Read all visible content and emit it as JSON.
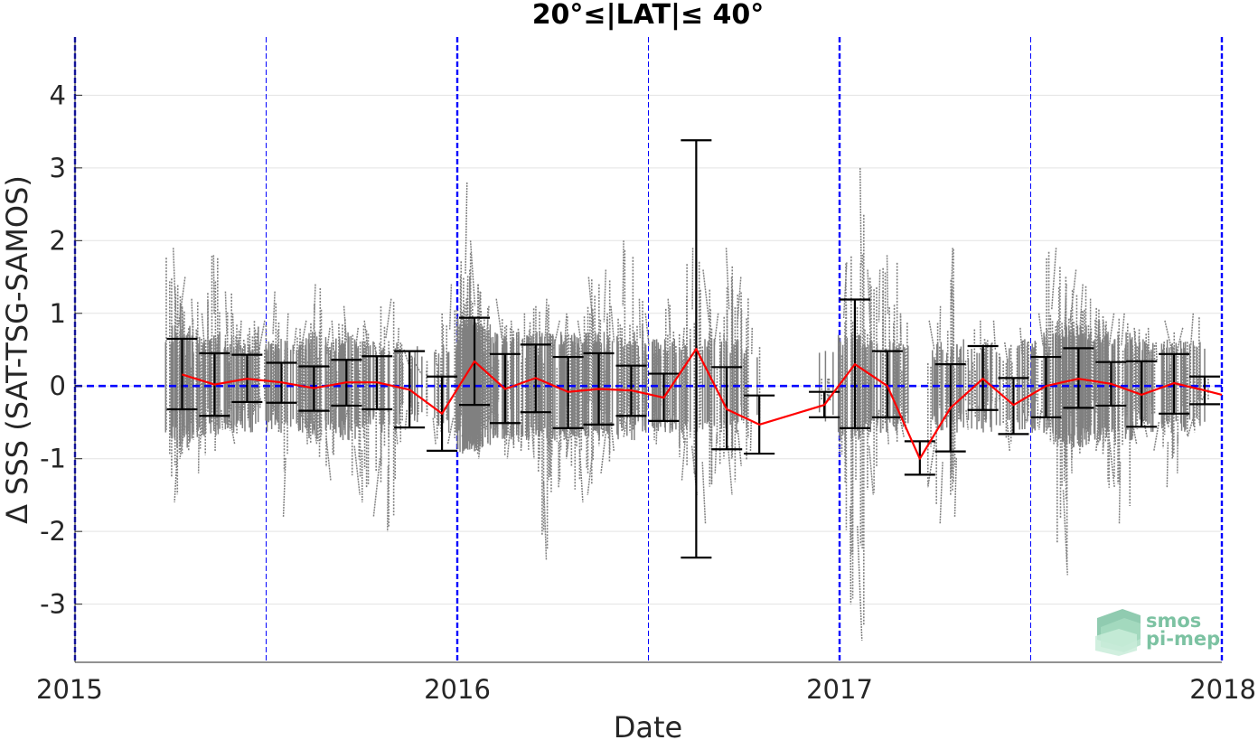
{
  "chart_data": {
    "type": "scatter",
    "title": "20°≤|LAT|≤ 40°",
    "xlabel": "Date",
    "ylabel": "Δ SSS (SAT-TSG-SAMOS)",
    "xlim": [
      2015.0,
      2018.0
    ],
    "ylim": [
      -3.8,
      4.8
    ],
    "x_ticks": [
      2015,
      2016,
      2017,
      2018
    ],
    "x_tick_labels": [
      "2015",
      "2016",
      "2017",
      "2018"
    ],
    "y_ticks": [
      4,
      3,
      2,
      1,
      0,
      -1,
      -2,
      -3
    ],
    "y_tick_labels": [
      "4",
      "3",
      "2",
      "1",
      "0",
      "-1",
      "-2",
      "-3"
    ],
    "grid": true,
    "zero_line_color": "#0000ff",
    "year_line_color": "#0000ff",
    "scatter_color": "#808080",
    "mean_line_color": "#ff0000",
    "errorbar_color": "#000000",
    "mean_series": {
      "x": [
        2015.28,
        2015.365,
        2015.45,
        2015.54,
        2015.625,
        2015.71,
        2015.79,
        2015.875,
        2015.96,
        2016.045,
        2016.125,
        2016.205,
        2016.29,
        2016.37,
        2016.455,
        2016.54,
        2016.625,
        2016.705,
        2016.79,
        2016.96,
        2017.04,
        2017.125,
        2017.21,
        2017.29,
        2017.375,
        2017.455,
        2017.54,
        2017.625,
        2017.71,
        2017.79,
        2017.875,
        2017.955,
        2018.0
      ],
      "mean": [
        0.16,
        0.02,
        0.1,
        0.05,
        -0.03,
        0.05,
        0.05,
        -0.05,
        -0.38,
        0.34,
        -0.04,
        0.11,
        -0.08,
        -0.04,
        -0.06,
        -0.16,
        0.51,
        -0.32,
        -0.53,
        -0.26,
        0.3,
        0.0,
        -1.0,
        -0.3,
        0.1,
        -0.26,
        0.0,
        0.1,
        0.03,
        -0.12,
        0.04,
        -0.06,
        -0.12
      ],
      "upper": [
        0.65,
        0.45,
        0.43,
        0.32,
        0.27,
        0.36,
        0.41,
        0.48,
        0.13,
        0.94,
        0.44,
        0.57,
        0.4,
        0.45,
        0.28,
        0.17,
        3.38,
        0.26,
        -0.13,
        -0.08,
        1.19,
        0.48,
        -0.76,
        0.3,
        0.55,
        0.11,
        0.4,
        0.52,
        0.33,
        0.34,
        0.44,
        0.13,
        null
      ],
      "lower": [
        -0.32,
        -0.41,
        -0.22,
        -0.23,
        -0.34,
        -0.27,
        -0.32,
        -0.57,
        -0.89,
        -0.26,
        -0.51,
        -0.36,
        -0.58,
        -0.53,
        -0.41,
        -0.48,
        -2.36,
        -0.87,
        -0.93,
        -0.43,
        -0.58,
        -0.43,
        -1.22,
        -0.9,
        -0.33,
        -0.66,
        -0.43,
        -0.3,
        -0.27,
        -0.56,
        -0.38,
        -0.25,
        null
      ]
    },
    "scatter_columns": {
      "note": "",
      "x": [
        2015.26,
        2015.28,
        2015.3,
        2015.33,
        2015.36,
        2015.39,
        2015.41,
        2015.44,
        2015.46,
        2015.49,
        2015.52,
        2015.55,
        2015.58,
        2015.6,
        2015.63,
        2015.66,
        2015.68,
        2015.71,
        2015.74,
        2015.76,
        2015.79,
        2015.82,
        2015.84,
        2015.87,
        2015.9,
        2015.94,
        2015.98,
        2016.02,
        2016.04,
        2016.06,
        2016.08,
        2016.11,
        2016.14,
        2016.17,
        2016.2,
        2016.23,
        2016.26,
        2016.29,
        2016.32,
        2016.35,
        2016.38,
        2016.41,
        2016.44,
        2016.47,
        2016.5,
        2016.53,
        2016.56,
        2016.59,
        2016.62,
        2016.65,
        2016.68,
        2016.71,
        2016.74,
        2016.77,
        2016.97,
        2017.02,
        2017.05,
        2017.08,
        2017.1,
        2017.13,
        2017.16,
        2017.24,
        2017.27,
        2017.3,
        2017.33,
        2017.36,
        2017.4,
        2017.44,
        2017.48,
        2017.53,
        2017.56,
        2017.59,
        2017.61,
        2017.63,
        2017.66,
        2017.68,
        2017.71,
        2017.74,
        2017.77,
        2017.8,
        2017.83,
        2017.86,
        2017.89,
        2017.92,
        2017.95
      ],
      "top": [
        1.9,
        1.5,
        1.2,
        1.0,
        1.8,
        1.3,
        1.0,
        0.9,
        0.8,
        0.9,
        1.3,
        1.0,
        0.8,
        0.9,
        1.4,
        0.8,
        0.9,
        1.1,
        0.8,
        0.9,
        0.6,
        1.2,
        0.8,
        0.5,
        0.3,
        0.5,
        1.4,
        2.8,
        2.0,
        1.3,
        1.1,
        1.2,
        0.9,
        1.0,
        1.1,
        1.2,
        0.9,
        1.0,
        0.9,
        1.5,
        1.6,
        1.1,
        2.0,
        1.2,
        1.0,
        0.5,
        1.2,
        0.8,
        1.9,
        1.6,
        1.0,
        1.9,
        1.5,
        0.8,
        0.1,
        1.7,
        3.0,
        1.6,
        1.6,
        1.8,
        1.0,
        0.9,
        1.1,
        1.9,
        0.5,
        0.9,
        0.9,
        0.6,
        0.8,
        1.0,
        1.9,
        1.4,
        1.6,
        1.4,
        1.2,
        0.9,
        1.0,
        1.0,
        0.8,
        0.8,
        0.6,
        0.9,
        0.8,
        1.0,
        0.1
      ],
      "bottom": [
        -1.6,
        -1.0,
        -0.6,
        -1.2,
        -0.9,
        -0.6,
        -0.8,
        -0.5,
        -0.4,
        -0.3,
        -0.4,
        -1.8,
        -0.6,
        -0.8,
        -0.8,
        -1.3,
        -0.6,
        -0.6,
        -1.5,
        -1.6,
        -1.8,
        -2.0,
        -0.8,
        -0.6,
        -0.4,
        -0.8,
        -0.8,
        -0.7,
        -0.9,
        -1.0,
        -0.6,
        -0.7,
        -1.0,
        -0.9,
        -1.0,
        -2.4,
        -1.4,
        -1.0,
        -1.6,
        -1.5,
        -1.2,
        -0.9,
        -0.7,
        -0.5,
        -0.5,
        -0.8,
        -0.6,
        -1.3,
        -1.5,
        -1.9,
        -1.2,
        -1.5,
        -1.1,
        -0.9,
        -0.2,
        -3.0,
        -3.5,
        -1.5,
        -0.6,
        -0.8,
        -0.7,
        -1.4,
        -1.9,
        -1.8,
        -0.6,
        -0.5,
        -0.3,
        -0.9,
        -0.5,
        -0.6,
        -0.8,
        -2.6,
        -1.2,
        -0.8,
        -0.7,
        -0.9,
        -1.4,
        -1.9,
        -0.8,
        -0.7,
        -0.9,
        -1.4,
        -1.2,
        -0.7,
        -0.2
      ],
      "density": [
        3,
        4,
        3,
        2,
        3,
        2,
        2,
        2,
        2,
        2,
        2,
        2,
        2,
        2,
        3,
        2,
        2,
        3,
        2,
        2,
        1,
        2,
        1,
        1,
        1,
        1,
        2,
        5,
        5,
        4,
        3,
        3,
        3,
        3,
        3,
        3,
        3,
        3,
        3,
        3,
        3,
        2,
        3,
        2,
        2,
        2,
        2,
        2,
        2,
        2,
        2,
        2,
        2,
        1,
        1,
        3,
        3,
        2,
        2,
        2,
        2,
        1,
        2,
        2,
        1,
        2,
        2,
        1,
        2,
        2,
        3,
        4,
        4,
        4,
        3,
        3,
        3,
        3,
        2,
        2,
        2,
        2,
        2,
        2,
        1
      ]
    }
  },
  "logo": {
    "line1": "smos",
    "line2": "pi-mep",
    "color": "#7cc2a2"
  }
}
